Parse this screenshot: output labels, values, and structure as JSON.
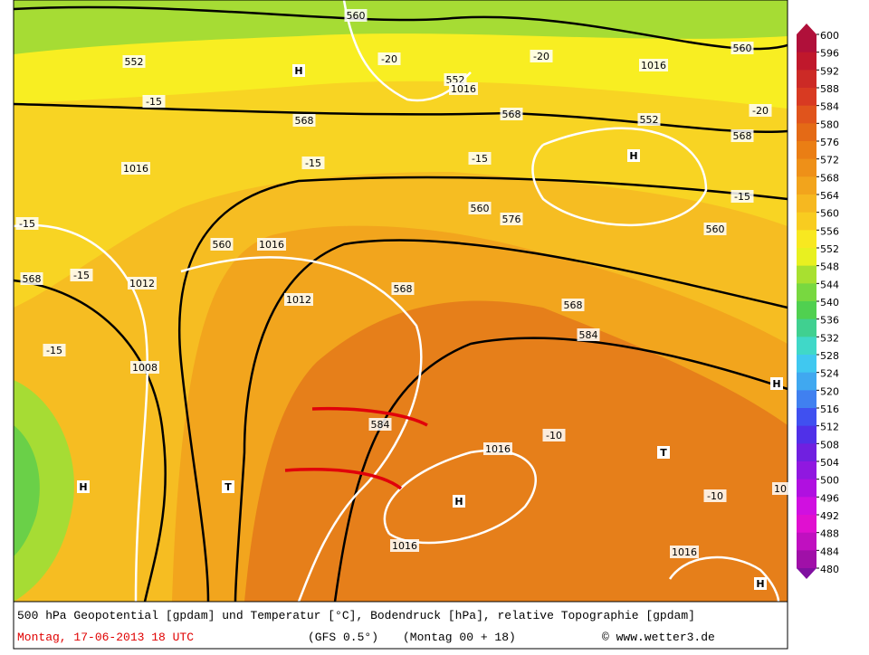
{
  "map": {
    "labels": [
      "560",
      "560",
      "552",
      "H",
      "-20",
      "-20",
      "1016",
      "552",
      "1016",
      "568",
      "568",
      "552",
      "-20",
      "568",
      "-15",
      "1016",
      "-15",
      "-15",
      "H",
      "-15",
      "560",
      "576",
      "560",
      "-15",
      "560",
      "1016",
      "568",
      "-15",
      "1012",
      "1012",
      "568",
      "568",
      "584",
      "-15",
      "1008",
      "H",
      "584",
      "-10",
      "1016",
      "T",
      "H",
      "T",
      "H",
      "-10",
      "10",
      "1016",
      "1016",
      "H"
    ]
  },
  "colorbar": {
    "levels": [
      600,
      596,
      592,
      588,
      584,
      580,
      576,
      572,
      568,
      564,
      560,
      556,
      552,
      548,
      544,
      540,
      536,
      532,
      528,
      524,
      520,
      516,
      512,
      508,
      504,
      500,
      496,
      492,
      488,
      484,
      480
    ],
    "colors": [
      "#b0103a",
      "#c0182c",
      "#cc2a26",
      "#d83a22",
      "#e0541c",
      "#e46a16",
      "#ea7e14",
      "#ee9018",
      "#f2a41c",
      "#f6b820",
      "#f8cc20",
      "#f8e820",
      "#e8f020",
      "#a8e030",
      "#78d840",
      "#50d050",
      "#40d090",
      "#40d8c8",
      "#40c8f0",
      "#40a8f0",
      "#4080f0",
      "#4050f0",
      "#5030e8",
      "#7020e0",
      "#9018e0",
      "#b010e0",
      "#d010e0",
      "#e010d0",
      "#c010c0",
      "#a010a8",
      "#8010a0"
    ]
  },
  "footer": {
    "line1": "500 hPa Geopotential [gpdam] und Temperatur [°C], Bodendruck [hPa], relative Topographie [gpdam]",
    "date": "Montag, 17-06-2013   18 UTC",
    "model": "(GFS 0.5°)",
    "run": "(Montag 00 + 18)",
    "source": "© www.wetter3.de"
  }
}
